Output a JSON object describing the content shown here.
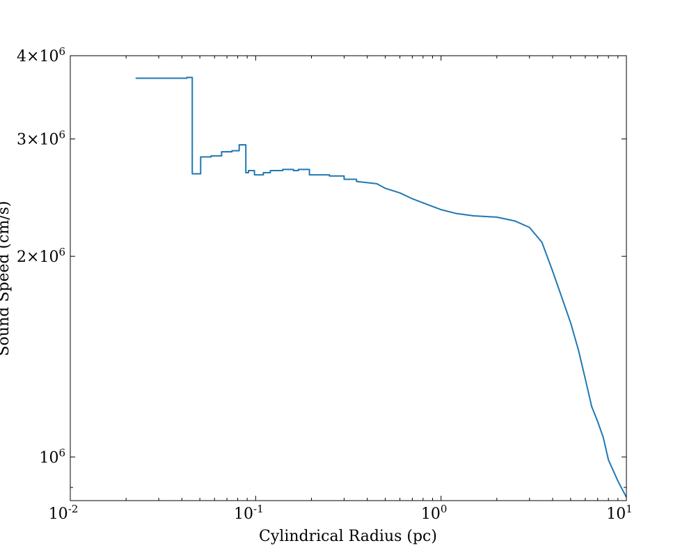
{
  "chart_data": {
    "type": "line",
    "title": "",
    "xlabel": "Cylindrical Radius  (pc)",
    "ylabel": "Sound Speed  (cm/s)",
    "x_scale": "log",
    "y_scale": "log",
    "xlim": [
      0.01,
      10
    ],
    "ylim": [
      860000,
      4000000
    ],
    "grid": false,
    "line_style": "steps",
    "x_ticks": [
      {
        "value": 0.01,
        "label": "10",
        "exp": "-2"
      },
      {
        "value": 0.1,
        "label": "10",
        "exp": "-1"
      },
      {
        "value": 1,
        "label": "10",
        "exp": "0"
      },
      {
        "value": 10,
        "label": "10",
        "exp": "1"
      }
    ],
    "y_ticks": [
      {
        "value": 1000000,
        "mant": "",
        "label": "10",
        "exp": "6"
      },
      {
        "value": 2000000,
        "mant": "2×",
        "label": "10",
        "exp": "6"
      },
      {
        "value": 3000000,
        "mant": "3×",
        "label": "10",
        "exp": "6"
      },
      {
        "value": 4000000,
        "mant": "4×",
        "label": "10",
        "exp": "6"
      }
    ],
    "series": [
      {
        "color": "#1f77b4",
        "points": [
          [
            0.0225,
            3700000
          ],
          [
            0.0425,
            3700000
          ],
          [
            0.0425,
            3710000
          ],
          [
            0.0455,
            3710000
          ],
          [
            0.0455,
            2660000
          ],
          [
            0.0505,
            2660000
          ],
          [
            0.0505,
            2820000
          ],
          [
            0.0575,
            2820000
          ],
          [
            0.0575,
            2830000
          ],
          [
            0.0655,
            2830000
          ],
          [
            0.0655,
            2870000
          ],
          [
            0.0745,
            2870000
          ],
          [
            0.0745,
            2880000
          ],
          [
            0.0815,
            2880000
          ],
          [
            0.0815,
            2940000
          ],
          [
            0.0885,
            2940000
          ],
          [
            0.0885,
            2670000
          ],
          [
            0.0915,
            2670000
          ],
          [
            0.0915,
            2690000
          ],
          [
            0.0985,
            2690000
          ],
          [
            0.0985,
            2650000
          ],
          [
            0.11,
            2650000
          ],
          [
            0.11,
            2670000
          ],
          [
            0.12,
            2670000
          ],
          [
            0.12,
            2690000
          ],
          [
            0.14,
            2690000
          ],
          [
            0.14,
            2700000
          ],
          [
            0.16,
            2700000
          ],
          [
            0.16,
            2690000
          ],
          [
            0.17,
            2690000
          ],
          [
            0.17,
            2700000
          ],
          [
            0.195,
            2700000
          ],
          [
            0.195,
            2650000
          ],
          [
            0.25,
            2650000
          ],
          [
            0.25,
            2640000
          ],
          [
            0.3,
            2640000
          ],
          [
            0.3,
            2610000
          ],
          [
            0.35,
            2610000
          ],
          [
            0.35,
            2590000
          ],
          [
            0.45,
            2570000
          ],
          [
            0.5,
            2530000
          ],
          [
            0.6,
            2490000
          ],
          [
            0.7,
            2440000
          ],
          [
            0.85,
            2390000
          ],
          [
            1.0,
            2350000
          ],
          [
            1.2,
            2320000
          ],
          [
            1.5,
            2300000
          ],
          [
            2.0,
            2290000
          ],
          [
            2.5,
            2260000
          ],
          [
            3.0,
            2210000
          ],
          [
            3.5,
            2100000
          ],
          [
            4.0,
            1900000
          ],
          [
            4.5,
            1730000
          ],
          [
            5.0,
            1590000
          ],
          [
            5.5,
            1450000
          ],
          [
            6.0,
            1310000
          ],
          [
            6.5,
            1190000
          ],
          [
            7.0,
            1130000
          ],
          [
            7.5,
            1070000
          ],
          [
            8.0,
            990000
          ],
          [
            9.0,
            920000
          ],
          [
            10.0,
            870000
          ]
        ]
      }
    ]
  }
}
